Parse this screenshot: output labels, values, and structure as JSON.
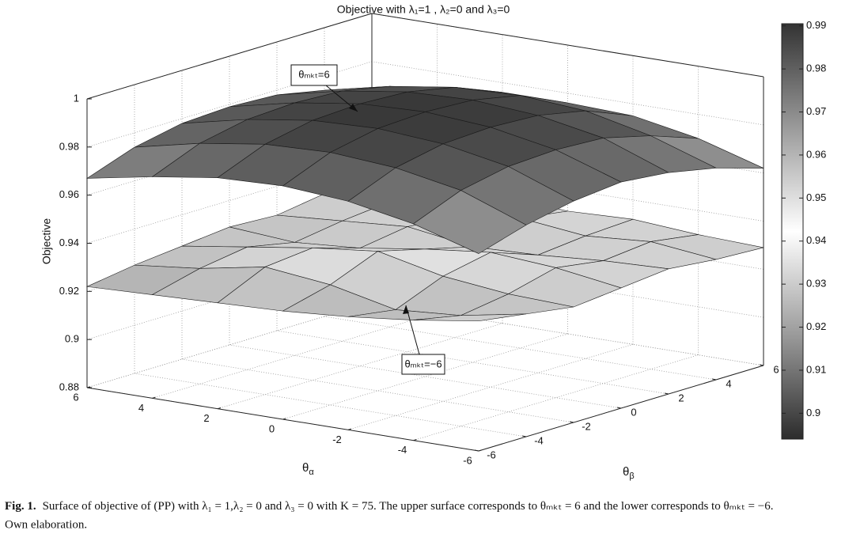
{
  "chart_data": {
    "type": "surface3d",
    "title": "Objective with λ₁=1 , λ₂=0 and λ₃=0",
    "zlabel": "Objective",
    "xlabel": [
      "θ",
      "α"
    ],
    "ylabel": [
      "θ",
      "β"
    ],
    "x": [
      -6,
      -4,
      -2,
      0,
      2,
      4,
      6
    ],
    "y": [
      -6,
      -4,
      -2,
      0,
      2,
      4,
      6
    ],
    "xlim": [
      -6,
      6
    ],
    "ylim": [
      -6,
      6
    ],
    "zlim": [
      0.88,
      1
    ],
    "xticks": [
      -6,
      -4,
      -2,
      0,
      2,
      4,
      6
    ],
    "yticks": [
      -6,
      -4,
      -2,
      0,
      2,
      4,
      6
    ],
    "zticks": [
      0.88,
      0.9,
      0.92,
      0.94,
      0.96,
      0.98,
      1
    ],
    "grid": true,
    "surfaces": [
      {
        "z": [
          [
            0.962,
            0.968,
            0.972,
            0.974,
            0.972,
            0.968,
            0.962
          ],
          [
            0.97,
            0.978,
            0.982,
            0.983,
            0.982,
            0.977,
            0.97
          ],
          [
            0.975,
            0.983,
            0.987,
            0.988,
            0.987,
            0.983,
            0.975
          ],
          [
            0.977,
            0.985,
            0.989,
            0.99,
            0.989,
            0.985,
            0.976
          ],
          [
            0.976,
            0.984,
            0.988,
            0.989,
            0.988,
            0.984,
            0.976
          ],
          [
            0.972,
            0.98,
            0.984,
            0.985,
            0.984,
            0.98,
            0.973
          ],
          [
            0.967,
            0.974,
            0.978,
            0.979,
            0.978,
            0.974,
            0.968
          ]
        ]
      },
      {
        "z": [
          [
            0.934,
            0.931,
            0.928,
            0.93,
            0.932,
            0.93,
            0.929
          ],
          [
            0.93,
            0.926,
            0.929,
            0.934,
            0.931,
            0.933,
            0.93
          ],
          [
            0.927,
            0.924,
            0.932,
            0.936,
            0.929,
            0.931,
            0.932
          ],
          [
            0.925,
            0.93,
            0.938,
            0.933,
            0.928,
            0.934,
            0.931
          ],
          [
            0.924,
            0.933,
            0.935,
            0.929,
            0.932,
            0.93,
            0.933
          ],
          [
            0.923,
            0.928,
            0.931,
            0.927,
            0.93,
            0.932,
            0.93
          ],
          [
            0.922,
            0.925,
            0.927,
            0.929,
            0.928,
            0.931,
            0.93
          ]
        ]
      }
    ],
    "colormap": [
      "#2c2c2c",
      "#9a9a9a",
      "#ffffff",
      "#9a9a9a",
      "#333333"
    ],
    "clim": [
      0.894,
      0.9905
    ],
    "colorbar_ticks": [
      0.9,
      0.91,
      0.92,
      0.93,
      0.94,
      0.95,
      0.96,
      0.97,
      0.98,
      0.99
    ],
    "annotations": [
      "θₘₖₜ=6",
      "θₘₖₜ=−6"
    ]
  },
  "caption": {
    "label": "Fig. 1.",
    "lines": [
      "Surface of objective of (PP) with λ₁ = 1,λ₂ = 0 and λ₃ = 0 with K = 75. The upper surface corresponds to θₘₖₜ = 6 and the lower corresponds to θₘₖₜ = −6.",
      "Own elaboration."
    ]
  }
}
